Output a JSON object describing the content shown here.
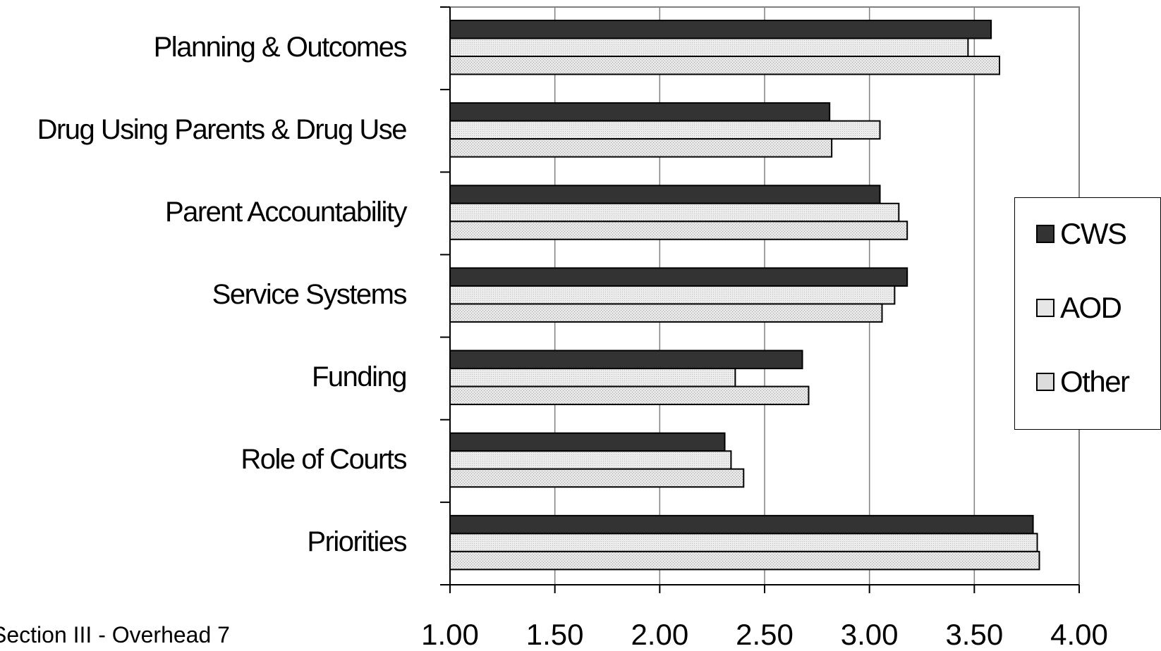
{
  "chart_data": {
    "type": "bar",
    "orientation": "horizontal",
    "categories": [
      "Planning & Outcomes",
      "Drug Using Parents & Drug Use",
      "Parent Accountability",
      "Service Systems",
      "Funding",
      "Role of Courts",
      "Priorities"
    ],
    "series": [
      {
        "name": "CWS",
        "color": "#333333",
        "values": [
          3.58,
          2.81,
          3.05,
          3.18,
          2.68,
          2.31,
          3.78
        ]
      },
      {
        "name": "AOD",
        "color": "#e2e2e2",
        "values": [
          3.47,
          3.05,
          3.14,
          3.12,
          2.36,
          2.34,
          3.8
        ]
      },
      {
        "name": "Other",
        "color": "#d4d4d4",
        "values": [
          3.62,
          2.82,
          3.18,
          3.06,
          2.71,
          2.4,
          3.81
        ]
      }
    ],
    "xlim": [
      1.0,
      4.0
    ],
    "xticks": [
      "1.00",
      "1.50",
      "2.00",
      "2.50",
      "3.00",
      "3.50",
      "4.00"
    ],
    "grid": "vertical",
    "legend_position": "right"
  },
  "footer_text": "Section III - Overhead 7"
}
